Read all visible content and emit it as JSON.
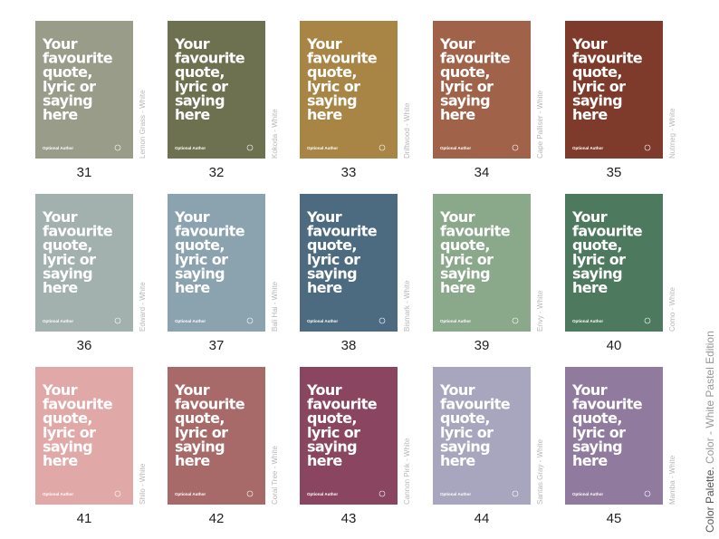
{
  "title": [
    "Color Palette.",
    "Color - White Pastel Edition"
  ],
  "quote_lines": [
    "Your",
    "favourite",
    "quote,",
    "lyric or",
    "saying",
    "here"
  ],
  "author": "Optional Author",
  "cards": [
    {
      "number": 31,
      "name": "Lemon Grass - White",
      "color": "#9a9c8a"
    },
    {
      "number": 32,
      "name": "Kokoda - White",
      "color": "#6d7150"
    },
    {
      "number": 33,
      "name": "Driftwood - White",
      "color": "#a88545"
    },
    {
      "number": 34,
      "name": "Cape Palliser - White",
      "color": "#a0634a"
    },
    {
      "number": 35,
      "name": "Nutmeg - White",
      "color": "#7e3b2b"
    },
    {
      "number": 36,
      "name": "Edward - White",
      "color": "#a2b0ae"
    },
    {
      "number": 37,
      "name": "Bali Hai - White",
      "color": "#8aa3ae"
    },
    {
      "number": 38,
      "name": "Bismark - White",
      "color": "#4d6b80"
    },
    {
      "number": 39,
      "name": "Envy - White",
      "color": "#8aa88a"
    },
    {
      "number": 40,
      "name": "Como - White",
      "color": "#4d7a5e"
    },
    {
      "number": 41,
      "name": "Shilo - White",
      "color": "#e0a8a6"
    },
    {
      "number": 42,
      "name": "Coral Tree - White",
      "color": "#a86a68"
    },
    {
      "number": 43,
      "name": "Cannon Pink - White",
      "color": "#8a4560"
    },
    {
      "number": 44,
      "name": "Santas Gray - White",
      "color": "#a8a6bf"
    },
    {
      "number": 45,
      "name": "Mamba - White",
      "color": "#907a9e"
    }
  ]
}
